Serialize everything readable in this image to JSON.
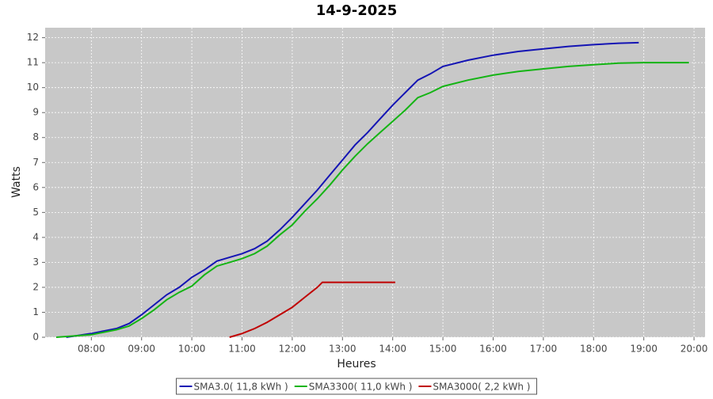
{
  "chart_data": {
    "type": "line",
    "title": "14-9-2025",
    "x_label": "Heures",
    "y_label": "Watts",
    "xlim": [
      7.08,
      20.22
    ],
    "ylim": [
      0,
      12.4
    ],
    "xticks": [
      {
        "value": 8,
        "label": "08:00"
      },
      {
        "value": 9,
        "label": "09:00"
      },
      {
        "value": 10,
        "label": "10:00"
      },
      {
        "value": 11,
        "label": "11:00"
      },
      {
        "value": 12,
        "label": "12:00"
      },
      {
        "value": 13,
        "label": "13:00"
      },
      {
        "value": 14,
        "label": "14:00"
      },
      {
        "value": 15,
        "label": "15:00"
      },
      {
        "value": 16,
        "label": "16:00"
      },
      {
        "value": 17,
        "label": "17:00"
      },
      {
        "value": 18,
        "label": "18:00"
      },
      {
        "value": 19,
        "label": "19:00"
      },
      {
        "value": 20,
        "label": "20:00"
      }
    ],
    "yticks": [
      0,
      1,
      2,
      3,
      4,
      5,
      6,
      7,
      8,
      9,
      10,
      11,
      12
    ],
    "grid": true,
    "legend": "bottom",
    "series": [
      {
        "name": "SMA3.0( 11,8 kWh )",
        "color": "#1414b4",
        "x": [
          7.5,
          8.0,
          8.25,
          8.5,
          8.75,
          9.0,
          9.25,
          9.5,
          9.75,
          10.0,
          10.25,
          10.5,
          10.75,
          11.0,
          11.25,
          11.5,
          11.75,
          12.0,
          12.25,
          12.5,
          12.75,
          13.0,
          13.25,
          13.5,
          13.75,
          14.0,
          14.25,
          14.5,
          14.75,
          15.0,
          15.5,
          16.0,
          16.5,
          17.0,
          17.5,
          18.0,
          18.5,
          18.9
        ],
        "values": [
          0,
          0.15,
          0.25,
          0.35,
          0.55,
          0.9,
          1.3,
          1.7,
          2.0,
          2.4,
          2.7,
          3.05,
          3.2,
          3.35,
          3.55,
          3.85,
          4.3,
          4.8,
          5.35,
          5.9,
          6.5,
          7.1,
          7.7,
          8.2,
          8.75,
          9.3,
          9.8,
          10.3,
          10.55,
          10.85,
          11.1,
          11.3,
          11.45,
          11.55,
          11.65,
          11.72,
          11.78,
          11.8
        ]
      },
      {
        "name": "SMA3300( 11,0 kWh )",
        "color": "#14b414",
        "x": [
          7.3,
          8.0,
          8.5,
          8.75,
          9.0,
          9.25,
          9.5,
          9.75,
          10.0,
          10.25,
          10.5,
          10.75,
          11.0,
          11.25,
          11.5,
          11.75,
          12.0,
          12.25,
          12.5,
          12.75,
          13.0,
          13.25,
          13.5,
          13.75,
          14.0,
          14.25,
          14.5,
          14.75,
          15.0,
          15.5,
          16.0,
          16.5,
          17.0,
          17.5,
          18.0,
          18.5,
          19.0,
          19.9
        ],
        "values": [
          0,
          0.1,
          0.3,
          0.45,
          0.75,
          1.1,
          1.5,
          1.8,
          2.05,
          2.5,
          2.85,
          3.0,
          3.15,
          3.35,
          3.65,
          4.1,
          4.5,
          5.05,
          5.55,
          6.1,
          6.7,
          7.25,
          7.75,
          8.2,
          8.65,
          9.1,
          9.6,
          9.8,
          10.05,
          10.3,
          10.5,
          10.65,
          10.75,
          10.85,
          10.92,
          10.98,
          11.0,
          11.0
        ]
      },
      {
        "name": "SMA3000( 2,2 kWh )",
        "color": "#c00000",
        "x": [
          10.75,
          11.0,
          11.25,
          11.5,
          11.75,
          12.0,
          12.25,
          12.5,
          12.6,
          14.05
        ],
        "values": [
          0,
          0.15,
          0.35,
          0.6,
          0.9,
          1.2,
          1.6,
          2.0,
          2.2,
          2.2
        ]
      }
    ]
  }
}
